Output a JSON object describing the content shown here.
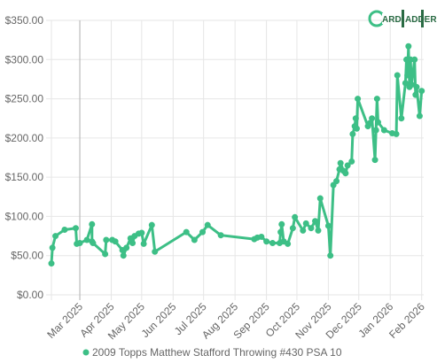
{
  "chart_data": {
    "type": "line",
    "title": "",
    "xlabel": "",
    "ylabel": "",
    "ylim": [
      0,
      350
    ],
    "yticks": [
      "$0.00",
      "$50.00",
      "$100.00",
      "$150.00",
      "$200.00",
      "$250.00",
      "$300.00",
      "$350.00"
    ],
    "xlim": [
      "2025-02-01",
      "2026-02-03"
    ],
    "xticks": [
      {
        "date": "2025-03-01",
        "label": "Mar 2025"
      },
      {
        "date": "2025-04-01",
        "label": "Apr 2025"
      },
      {
        "date": "2025-05-01",
        "label": "May 2025"
      },
      {
        "date": "2025-06-01",
        "label": "Jun 2025"
      },
      {
        "date": "2025-07-01",
        "label": "Jul 2025"
      },
      {
        "date": "2025-08-01",
        "label": "Aug 2025"
      },
      {
        "date": "2025-09-01",
        "label": "Sep 2025"
      },
      {
        "date": "2025-10-01",
        "label": "Oct 2025"
      },
      {
        "date": "2025-11-01",
        "label": "Nov 2025"
      },
      {
        "date": "2025-12-01",
        "label": "Dec 2025"
      },
      {
        "date": "2026-01-01",
        "label": "Jan 2026"
      },
      {
        "date": "2026-02-01",
        "label": "Feb 2026"
      }
    ],
    "grid": true,
    "legend_position": "bottom",
    "line_color": "#3dbf86",
    "series": [
      {
        "name": "2009 Topps Matthew Stafford Throwing #430 PSA 10",
        "points": [
          [
            "2025-02-01",
            40
          ],
          [
            "2025-02-02",
            60
          ],
          [
            "2025-02-05",
            75
          ],
          [
            "2025-02-14",
            83
          ],
          [
            "2025-02-25",
            85
          ],
          [
            "2025-02-26",
            65
          ],
          [
            "2025-03-01",
            66
          ],
          [
            "2025-03-08",
            70
          ],
          [
            "2025-03-13",
            90
          ],
          [
            "2025-03-13",
            68
          ],
          [
            "2025-03-14",
            66
          ],
          [
            "2025-03-26",
            52
          ],
          [
            "2025-03-27",
            70
          ],
          [
            "2025-04-02",
            70
          ],
          [
            "2025-04-05",
            68
          ],
          [
            "2025-04-12",
            57
          ],
          [
            "2025-04-13",
            50
          ],
          [
            "2025-04-16",
            60
          ],
          [
            "2025-04-20",
            72
          ],
          [
            "2025-04-22",
            66
          ],
          [
            "2025-04-24",
            75
          ],
          [
            "2025-04-28",
            78
          ],
          [
            "2025-05-01",
            79
          ],
          [
            "2025-05-03",
            65
          ],
          [
            "2025-05-11",
            89
          ],
          [
            "2025-05-14",
            55
          ],
          [
            "2025-06-14",
            80
          ],
          [
            "2025-06-22",
            70
          ],
          [
            "2025-06-30",
            80
          ],
          [
            "2025-07-05",
            89
          ],
          [
            "2025-07-18",
            76
          ],
          [
            "2025-08-20",
            71
          ],
          [
            "2025-08-23",
            73
          ],
          [
            "2025-08-27",
            74
          ],
          [
            "2025-09-01",
            68
          ],
          [
            "2025-09-07",
            66
          ],
          [
            "2025-09-14",
            66
          ],
          [
            "2025-09-15",
            80
          ],
          [
            "2025-09-16",
            90
          ],
          [
            "2025-09-18",
            68
          ],
          [
            "2025-09-22",
            65
          ],
          [
            "2025-09-27",
            85
          ],
          [
            "2025-09-29",
            99
          ],
          [
            "2025-10-07",
            82
          ],
          [
            "2025-10-10",
            91
          ],
          [
            "2025-10-15",
            85
          ],
          [
            "2025-10-19",
            94
          ],
          [
            "2025-10-22",
            82
          ],
          [
            "2025-10-24",
            123
          ],
          [
            "2025-11-01",
            88
          ],
          [
            "2025-11-03",
            50
          ],
          [
            "2025-11-06",
            140
          ],
          [
            "2025-11-09",
            145
          ],
          [
            "2025-11-12",
            160
          ],
          [
            "2025-11-13",
            168
          ],
          [
            "2025-11-16",
            158
          ],
          [
            "2025-11-18",
            155
          ],
          [
            "2025-11-20",
            165
          ],
          [
            "2025-11-24",
            170
          ],
          [
            "2025-11-25",
            205
          ],
          [
            "2025-11-27",
            215
          ],
          [
            "2025-11-28",
            225
          ],
          [
            "2025-11-29",
            212
          ],
          [
            "2025-11-30",
            250
          ],
          [
            "2025-12-10",
            215
          ],
          [
            "2025-12-12",
            219
          ],
          [
            "2025-12-14",
            225
          ],
          [
            "2025-12-17",
            172
          ],
          [
            "2025-12-18",
            210
          ],
          [
            "2025-12-19",
            250
          ],
          [
            "2025-12-20",
            220
          ],
          [
            "2025-12-26",
            210
          ],
          [
            "2026-01-03",
            206
          ],
          [
            "2026-01-07",
            205
          ],
          [
            "2026-01-08",
            280
          ],
          [
            "2026-01-12",
            225
          ],
          [
            "2026-01-16",
            270
          ],
          [
            "2026-01-17",
            300
          ],
          [
            "2026-01-18",
            280
          ],
          [
            "2026-01-19",
            317
          ],
          [
            "2026-01-20",
            265
          ],
          [
            "2026-01-21",
            300
          ],
          [
            "2026-01-22",
            268
          ],
          [
            "2026-01-25",
            300
          ],
          [
            "2026-01-26",
            255
          ],
          [
            "2026-01-27",
            265
          ],
          [
            "2026-01-30",
            228
          ],
          [
            "2026-02-01",
            260
          ]
        ]
      }
    ]
  }
}
